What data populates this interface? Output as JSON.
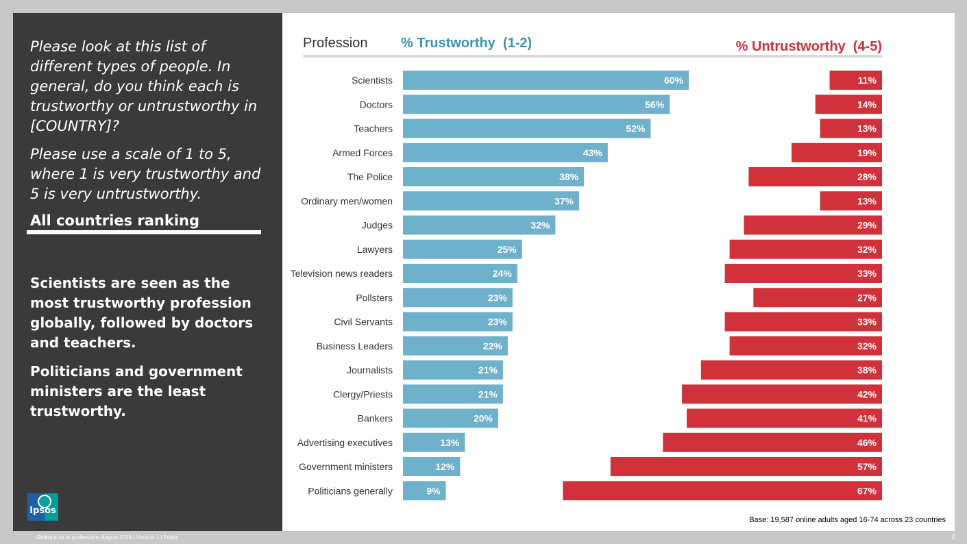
{
  "left_panel": {
    "question_1": "Please look at this list of different types of people. In general, do you think each is trustworthy or untrustworthy in [COUNTRY]?",
    "question_2": "Please use a scale of 1 to 5, where 1 is very trustworthy and 5 is very untrustworthy.",
    "ranking_label": "All countries ranking",
    "summary_1": "Scientists are seen as the most trustworthy profession globally, followed by doctors and teachers.",
    "summary_2": "Politicians and government ministers are the least trustworthy."
  },
  "logo": {
    "text": "Ipsos"
  },
  "footer": {
    "text": "Global trust in professions August 2019 | Version 1 | Public",
    "page_number": "2"
  },
  "colors": {
    "trust": "#6fb0ca",
    "untrust": "#d0313a",
    "trust_header": "#3d93b3",
    "untrust_header": "#d0313a",
    "header_rule": "#d9d9d9"
  },
  "chart_data": {
    "type": "bar",
    "header_category": "Profession",
    "base_note": "Base: 19,587 online adults aged 16-74 across 23 countries",
    "categories": [
      "Scientists",
      "Doctors",
      "Teachers",
      "Armed Forces",
      "The Police",
      "Ordinary men/women",
      "Judges",
      "Lawyers",
      "Television news readers",
      "Pollsters",
      "Civil Servants",
      "Business Leaders",
      "Journalists",
      "Clergy/Priests",
      "Bankers",
      "Advertising executives",
      "Government ministers",
      "Politicians generally"
    ],
    "series": [
      {
        "name": "% Trustworthy  (1-2)",
        "values": [
          60,
          56,
          52,
          43,
          38,
          37,
          32,
          25,
          24,
          23,
          23,
          22,
          21,
          21,
          20,
          13,
          12,
          9
        ]
      },
      {
        "name": "% Untrustworthy  (4-5)",
        "values": [
          11,
          14,
          13,
          19,
          28,
          13,
          29,
          32,
          33,
          27,
          33,
          32,
          38,
          42,
          41,
          46,
          57,
          67
        ]
      }
    ],
    "labels": {
      "trust": [
        "60%",
        "56%",
        "52%",
        "43%",
        "38%",
        "37%",
        "32%",
        "25%",
        "24%",
        "23%",
        "23%",
        "22%",
        "21%",
        "21%",
        "20%",
        "13%",
        "12%",
        "9%"
      ],
      "untrust": [
        "11%",
        "14%",
        "13%",
        "19%",
        "28%",
        "13%",
        "29%",
        "32%",
        "33%",
        "27%",
        "33%",
        "32%",
        "38%",
        "42%",
        "41%",
        "46%",
        "57%",
        "67%"
      ]
    }
  }
}
